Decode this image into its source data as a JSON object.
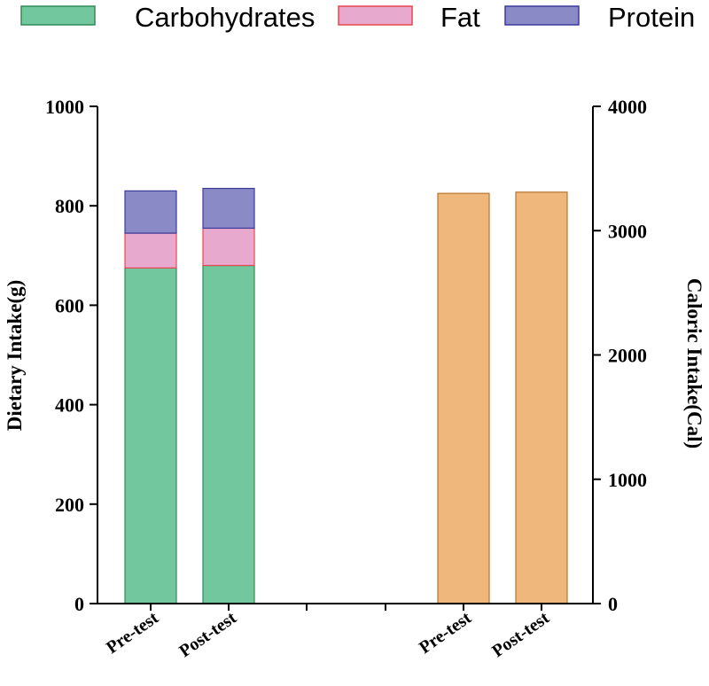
{
  "chart_data": {
    "type": "bar",
    "subtype": "stacked-bar-dual-axis",
    "legend": [
      {
        "name": "Carbohydrates",
        "fill": "#73c79e",
        "stroke": "#2e8b57"
      },
      {
        "name": "Fat",
        "fill": "#e8a9cf",
        "stroke": "#e8474f"
      },
      {
        "name": "Protein",
        "fill": "#8a8ac6",
        "stroke": "#3a3a9a"
      }
    ],
    "left_axis": {
      "label": "Dietary Intake(g)",
      "ylim": [
        0,
        1000
      ],
      "ticks": [
        0,
        200,
        400,
        600,
        800,
        1000
      ]
    },
    "right_axis": {
      "label": "Caloric Intake(Cal)",
      "ylim": [
        0,
        4000
      ],
      "ticks": [
        0,
        1000,
        2000,
        3000,
        4000
      ]
    },
    "categories": [
      "Pre-test",
      "Post-test",
      "Pre-test",
      "Post-test"
    ],
    "dietary": {
      "categories": [
        "Pre-test",
        "Post-test"
      ],
      "series": [
        {
          "name": "Carbohydrates",
          "values": [
            675,
            680
          ]
        },
        {
          "name": "Fat",
          "values": [
            70,
            75
          ]
        },
        {
          "name": "Protein",
          "values": [
            85,
            80
          ]
        }
      ]
    },
    "caloric": {
      "categories": [
        "Pre-test",
        "Post-test"
      ],
      "series": [
        {
          "name": "Caloric Intake",
          "values": [
            3300,
            3310
          ],
          "fill": "#f0b77c",
          "stroke": "#b5752f"
        }
      ]
    }
  }
}
